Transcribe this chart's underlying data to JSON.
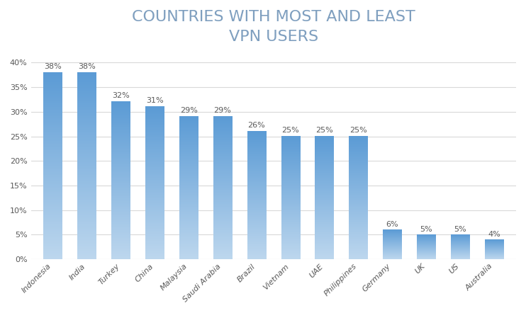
{
  "title_line1": "COUNTRIES WITH MOST AND LEAST",
  "title_line2": "VPN USERS",
  "categories": [
    "Indonesia",
    "India",
    "Turkey",
    "China",
    "Malaysia",
    "Saudi Arabia",
    "Brazil",
    "Vietnam",
    "UAE",
    "Philippines",
    "Germany",
    "UK",
    "US",
    "Australia"
  ],
  "values": [
    38,
    38,
    32,
    31,
    29,
    29,
    26,
    25,
    25,
    25,
    6,
    5,
    5,
    4
  ],
  "bar_color_top": "#5b9bd5",
  "bar_color_bottom": "#bdd7ee",
  "title_color": "#7f9fbf",
  "label_color": "#595959",
  "grid_color": "#d9d9d9",
  "ylim": [
    0,
    42
  ],
  "yticks": [
    0,
    5,
    10,
    15,
    20,
    25,
    30,
    35,
    40
  ],
  "ytick_labels": [
    "0%",
    "5%",
    "10%",
    "15%",
    "20%",
    "25%",
    "30%",
    "35%",
    "40%"
  ],
  "title_fontsize": 16,
  "tick_fontsize": 8,
  "value_fontsize": 8,
  "background_color": "#ffffff",
  "bar_width": 0.55
}
